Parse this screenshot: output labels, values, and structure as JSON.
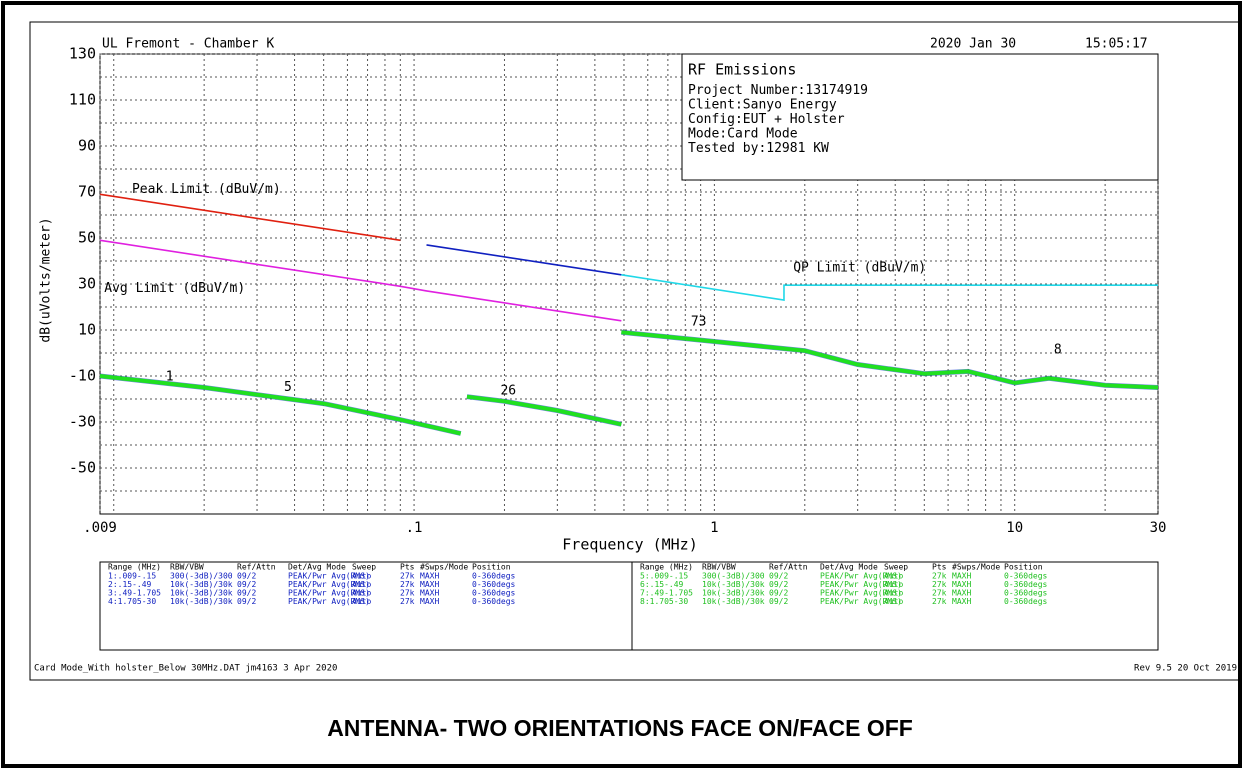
{
  "chart_data": {
    "type": "line",
    "title": "UL Fremont - Chamber K",
    "date": "2020 Jan 30",
    "time": "15:05:17",
    "info": [
      "RF Emissions",
      "Project Number:13174919",
      "Client:Sanyo Energy",
      "Config:EUT + Holster",
      "Mode:Card Mode",
      "Tested by:12981 KW"
    ],
    "xlabel": "Frequency (MHz)",
    "ylabel": "dB(uVolts/meter)",
    "log_x": true,
    "xlim": [
      0.009,
      30
    ],
    "ylim": [
      -70,
      130
    ],
    "xticks": [
      {
        "value": 0.009,
        "label": ".009"
      },
      {
        "value": 0.1,
        "label": ".1"
      },
      1,
      10,
      30
    ],
    "xgrid": [
      0.01,
      0.02,
      0.03,
      0.04,
      0.05,
      0.06,
      0.07,
      0.08,
      0.09,
      0.2,
      0.3,
      0.4,
      0.5,
      0.6,
      0.7,
      0.8,
      0.9,
      2,
      3,
      4,
      5,
      6,
      7,
      8,
      9,
      20
    ],
    "yticks": [
      130,
      110,
      90,
      70,
      50,
      30,
      10,
      -10,
      -30,
      -50
    ],
    "ygrid": [
      120,
      100,
      80,
      60,
      40,
      20,
      0,
      -20,
      -40,
      -60
    ],
    "series": [
      {
        "color": "#e02010",
        "x": [
          0.009,
          0.09
        ],
        "values": [
          69,
          49
        ]
      },
      {
        "color": "#1020c0",
        "x": [
          0.11,
          0.49
        ],
        "values": [
          47,
          34
        ]
      },
      {
        "color": "#20d8e8",
        "x": [
          0.49,
          1.705,
          1.705,
          30
        ],
        "values": [
          34,
          23,
          29.5,
          29.5
        ]
      },
      {
        "color": "#e020e0",
        "x": [
          0.009,
          0.09,
          0.11,
          0.49
        ],
        "values": [
          49,
          29,
          27,
          14
        ]
      },
      {
        "color": "#20e020",
        "x": [
          0.009,
          0.02,
          0.05,
          0.09,
          0.143
        ],
        "values": [
          -10,
          -15,
          -22,
          -29,
          -35
        ]
      },
      {
        "color": "#20e020",
        "x": [
          0.15,
          0.2,
          0.3,
          0.49
        ],
        "values": [
          -19,
          -21,
          -25,
          -31
        ]
      },
      {
        "color": "#20e020",
        "x": [
          0.49,
          1,
          2,
          3,
          5,
          7,
          10,
          13,
          20,
          30
        ],
        "values": [
          9,
          5,
          1,
          -5,
          -9,
          -8,
          -13,
          -11,
          -14,
          -15
        ]
      }
    ],
    "annotations": [
      {
        "text": "Peak Limit (dBuV/m)",
        "x": 0.0115,
        "y": 71,
        "color": "#2030d0"
      },
      {
        "text": "Avg Limit (dBuV/m)",
        "x": 0.0093,
        "y": 28,
        "color": "#e020e0"
      },
      {
        "text": "QP Limit (dBuV/m)",
        "x": 1.83,
        "y": 37,
        "color": "#20d8e8"
      },
      {
        "text": "1",
        "x": 0.0149,
        "y": -10.4,
        "color": "#000"
      },
      {
        "text": "5",
        "x": 0.0369,
        "y": -15,
        "color": "#000"
      },
      {
        "text": "26",
        "x": 0.194,
        "y": -16.5,
        "color": "#000"
      },
      {
        "text": "73",
        "x": 0.835,
        "y": 13.5,
        "color": "#000"
      },
      {
        "text": "8",
        "x": 13.5,
        "y": 1.3,
        "color": "#000"
      }
    ],
    "table": {
      "header": [
        "Range (MHz)",
        "RBW/VBW",
        "Ref/Attn",
        "Det/Avg Mode",
        "Sweep",
        "Pts",
        "#Swps/Mode",
        "Position"
      ],
      "left_rows": [
        [
          "1:.009-.15",
          "300(-3dB)/300",
          "09/2",
          "PEAK/Pwr Avg(RMS)",
          "Auto",
          "27k",
          "MAXH",
          "0-360degs"
        ],
        [
          "2:.15-.49",
          "10k(-3dB)/30k",
          "09/2",
          "PEAK/Pwr Avg(RMS)",
          "Auto",
          "27k",
          "MAXH",
          "0-360degs"
        ],
        [
          "3:.49-1.705",
          "10k(-3dB)/30k",
          "09/2",
          "PEAK/Pwr Avg(RMS)",
          "Auto",
          "27k",
          "MAXH",
          "0-360degs"
        ],
        [
          "4:1.705-30",
          "10k(-3dB)/30k",
          "09/2",
          "PEAK/Pwr Avg(RMS)",
          "Auto",
          "27k",
          "MAXH",
          "0-360degs"
        ]
      ],
      "right_rows": [
        [
          "5:.009-.15",
          "300(-3dB)/300",
          "09/2",
          "PEAK/Pwr Avg(RMS)",
          "Auto",
          "27k",
          "MAXH",
          "0-360degs"
        ],
        [
          "6:.15-.49",
          "10k(-3dB)/30k",
          "09/2",
          "PEAK/Pwr Avg(RMS)",
          "Auto",
          "27k",
          "MAXH",
          "0-360degs"
        ],
        [
          "7:.49-1.705",
          "10k(-3dB)/30k",
          "09/2",
          "PEAK/Pwr Avg(RMS)",
          "Auto",
          "27k",
          "MAXH",
          "0-360degs"
        ],
        [
          "8:1.705-30",
          "10k(-3dB)/30k",
          "09/2",
          "PEAK/Pwr Avg(RMS)",
          "Auto",
          "27k",
          "MAXH",
          "0-360degs"
        ]
      ]
    },
    "footer_left": "Card Mode_With holster_Below 30MHz.DAT jm4163 3 Apr 2020",
    "footer_right": "Rev 9.5 20 Oct 2019",
    "caption": "ANTENNA- TWO ORIENTATIONS FACE ON/FACE OFF"
  }
}
